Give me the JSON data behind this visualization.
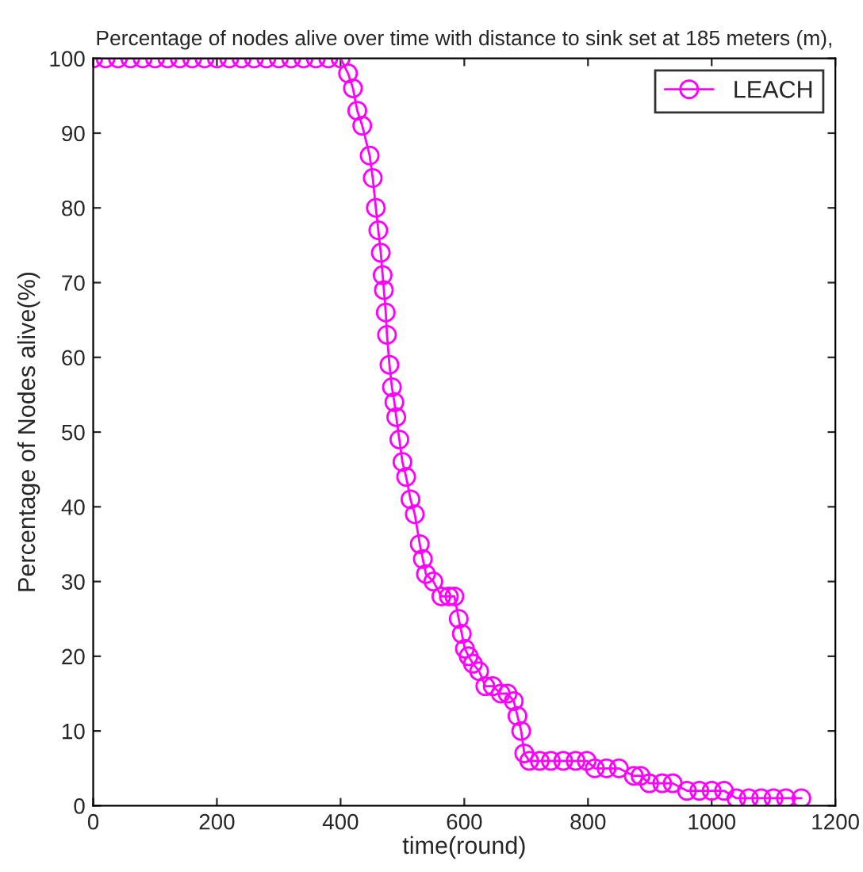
{
  "chart_data": {
    "type": "line",
    "title": "Percentage of nodes alive over time with distance to sink set at 185 meters (m),",
    "xlabel": "time(round)",
    "ylabel": "Percentage of Nodes alive(%)",
    "series": [
      {
        "name": "LEACH",
        "color": "#ff00ff",
        "x": [
          0,
          20,
          40,
          60,
          80,
          100,
          120,
          140,
          160,
          180,
          200,
          220,
          240,
          260,
          280,
          300,
          320,
          340,
          360,
          380,
          400,
          412,
          420,
          427,
          435,
          447,
          452,
          457,
          461,
          465,
          468,
          470,
          473,
          475,
          479,
          483,
          487,
          490,
          495,
          500,
          506,
          513,
          520,
          528,
          533,
          538,
          550,
          563,
          575,
          584,
          591,
          596,
          601,
          607,
          614,
          624,
          634,
          646,
          659,
          670,
          680,
          686,
          692,
          697,
          705,
          722,
          740,
          760,
          780,
          798,
          811,
          830,
          850,
          874,
          885,
          899,
          920,
          937,
          960,
          980,
          1000,
          1020,
          1040,
          1060,
          1080,
          1100,
          1120,
          1145
        ],
        "values": [
          100,
          100,
          100,
          100,
          100,
          100,
          100,
          100,
          100,
          100,
          100,
          100,
          100,
          100,
          100,
          100,
          100,
          100,
          100,
          100,
          100,
          98,
          96,
          93,
          91,
          87,
          84,
          80,
          77,
          74,
          71,
          69,
          66,
          63,
          59,
          56,
          54,
          52,
          49,
          46,
          44,
          41,
          39,
          35,
          33,
          31,
          30,
          28,
          28,
          28,
          25,
          23,
          21,
          20,
          19,
          18,
          16,
          16,
          15,
          15,
          14,
          12,
          10,
          7,
          6,
          6,
          6,
          6,
          6,
          6,
          5,
          5,
          5,
          4,
          4,
          3,
          3,
          3,
          2,
          2,
          2,
          2,
          1,
          1,
          1,
          1,
          1,
          1
        ]
      }
    ],
    "xlim": [
      0,
      1200
    ],
    "ylim": [
      0,
      100
    ],
    "xticks": [
      0,
      200,
      400,
      600,
      800,
      1000,
      1200
    ],
    "yticks": [
      0,
      10,
      20,
      30,
      40,
      50,
      60,
      70,
      80,
      90,
      100
    ],
    "grid": false,
    "legend": "top right",
    "marker": "circle",
    "line_style": "solid"
  }
}
